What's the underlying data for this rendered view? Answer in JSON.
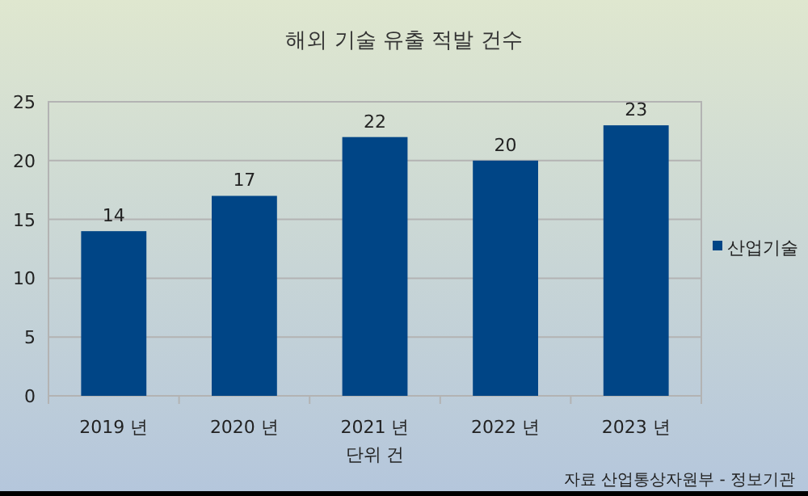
{
  "chart_data": {
    "type": "bar",
    "title": "해외 기술 유출 적발 건수",
    "categories": [
      "2019 년",
      "2020 년",
      "2021 년",
      "2022 년",
      "2023 년"
    ],
    "series": [
      {
        "name": "산업기술",
        "color": "#004586",
        "values": [
          14,
          17,
          22,
          20,
          23
        ]
      }
    ],
    "ylim": [
      0,
      25
    ],
    "yticks": [
      0,
      5,
      10,
      15,
      20,
      25
    ],
    "grid": "y",
    "legend": "right",
    "data_labels": true,
    "xlabel": "단위 건",
    "annotations": [
      "자료 산업통상자원부 - 정보기관"
    ]
  }
}
